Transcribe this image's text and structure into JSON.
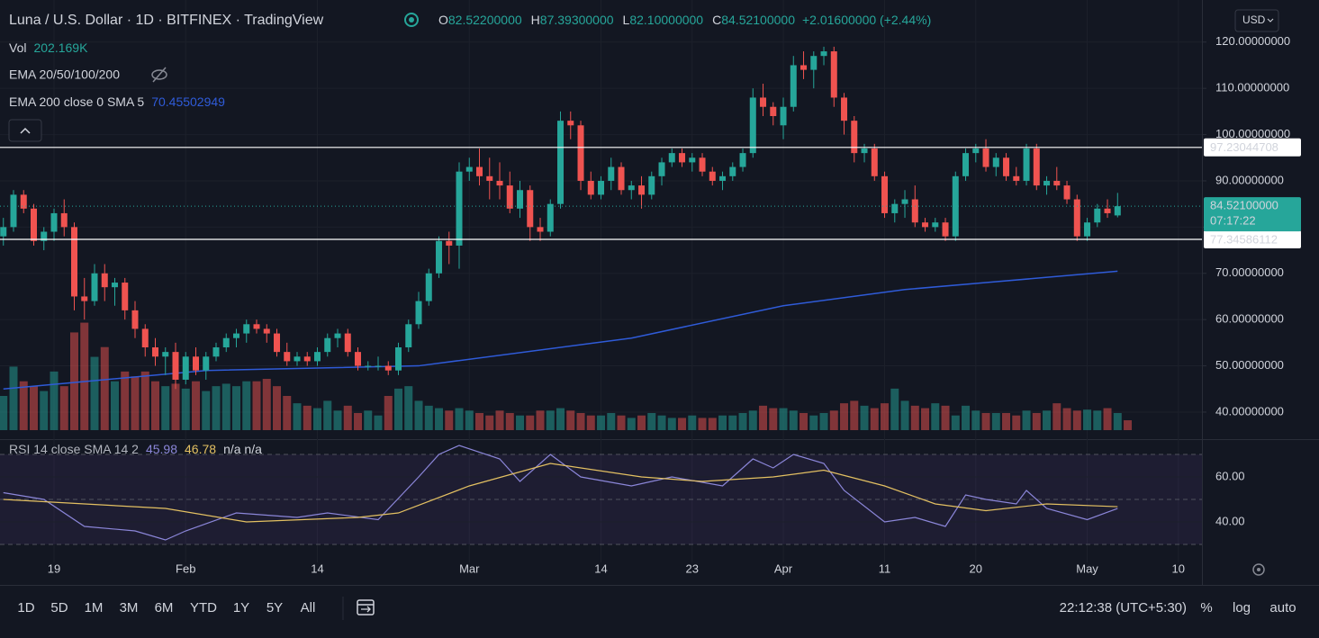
{
  "header": {
    "symbol": "Luna / U.S. Dollar",
    "interval": "1D",
    "exchange": "BITFINEX",
    "source": "TradingView",
    "currency": "USD"
  },
  "chart_data": {
    "type": "candlestick",
    "ohlc_legend": [
      {
        "key": "O",
        "label": "82.52200000"
      },
      {
        "key": "H",
        "label": "87.39300000"
      },
      {
        "key": "L",
        "label": "82.10000000"
      },
      {
        "key": "C",
        "label": "84.52100000"
      }
    ],
    "change_label": "+2.01600000 (+2.44%)",
    "xlim": [
      -0.333,
      118.33
    ],
    "xticks": [
      {
        "value": 5,
        "label": "19"
      },
      {
        "value": 18,
        "label": "Feb"
      },
      {
        "value": 31,
        "label": "14"
      },
      {
        "value": 46,
        "label": "Mar"
      },
      {
        "value": 59,
        "label": "14"
      },
      {
        "value": 68,
        "label": "23"
      },
      {
        "value": 77,
        "label": "Apr"
      },
      {
        "value": 87,
        "label": "11"
      },
      {
        "value": 96,
        "label": "20"
      },
      {
        "value": 107,
        "label": "May"
      },
      {
        "value": 116,
        "label": "10"
      }
    ],
    "ylim": [
      36.1,
      129.1
    ],
    "yticks": [
      {
        "value": 40,
        "label": "40.00000000"
      },
      {
        "value": 50,
        "label": "50.00000000"
      },
      {
        "value": 60,
        "label": "60.00000000"
      },
      {
        "value": 70,
        "label": "70.00000000"
      },
      {
        "value": 80,
        "label": "80.00000000"
      },
      {
        "value": 90,
        "label": "90.00000000"
      },
      {
        "value": 100,
        "label": "100.00000000"
      },
      {
        "value": 110,
        "label": "110.00000000"
      },
      {
        "value": 120,
        "label": "120.00000000"
      }
    ],
    "grid": true,
    "up_color": "#26a69a",
    "down_color": "#ef5350",
    "open": [
      78,
      80,
      87,
      84,
      77,
      79,
      83,
      80,
      65,
      64,
      70,
      67,
      68,
      62,
      58,
      54,
      52,
      53,
      47,
      52,
      49,
      52,
      54,
      56,
      57,
      59,
      58,
      57,
      53,
      51,
      52,
      51,
      53,
      56,
      57,
      53,
      50,
      50,
      50,
      49,
      54,
      59,
      64,
      70,
      77,
      76,
      92,
      93,
      91,
      90,
      89,
      84,
      88,
      80,
      79,
      85,
      103,
      102,
      90,
      87,
      90,
      93,
      88,
      89,
      87,
      91,
      94,
      96,
      94,
      95,
      92,
      90,
      91,
      93,
      96,
      108,
      106,
      102,
      106,
      115,
      114,
      117,
      118,
      108,
      103,
      96,
      97,
      91,
      83,
      85,
      86,
      81,
      80,
      81,
      78,
      91,
      96,
      97,
      93,
      95,
      91,
      90,
      97,
      89,
      90,
      89,
      86,
      78,
      81,
      84,
      82.522
    ],
    "high": [
      82,
      88,
      88,
      85,
      80,
      84,
      86,
      81,
      69,
      72,
      72,
      69,
      69,
      64,
      59,
      56,
      54,
      55,
      53,
      54,
      53,
      55,
      57,
      58,
      60,
      60,
      59,
      58,
      55,
      53,
      53,
      54,
      57,
      58,
      58,
      54,
      51,
      52,
      51,
      55,
      60,
      66,
      71,
      78,
      79,
      94,
      95,
      97,
      95,
      94,
      92,
      90,
      89,
      82,
      86,
      105,
      105,
      103,
      92,
      91,
      95,
      94,
      90,
      91,
      92,
      95,
      97,
      97,
      96,
      96,
      93,
      92,
      94,
      97,
      110,
      111,
      107,
      108,
      117,
      118,
      118,
      119,
      119,
      109,
      104,
      98,
      98,
      92,
      86,
      88,
      89,
      82,
      82,
      82,
      92,
      97,
      98,
      99,
      96,
      96,
      93,
      98,
      98,
      91,
      93,
      90,
      87,
      82,
      85,
      86,
      87.393
    ],
    "low": [
      76,
      79,
      83,
      76,
      75,
      77,
      78,
      62,
      60,
      63,
      64,
      63,
      60,
      56,
      52,
      50,
      48,
      45,
      46,
      48,
      47,
      51,
      53,
      54,
      55,
      57,
      55,
      52,
      50,
      50,
      50,
      50,
      52,
      54,
      52,
      49,
      49,
      49,
      48,
      48,
      53,
      58,
      63,
      69,
      72,
      71,
      90,
      89,
      86,
      86,
      83,
      82,
      77,
      77,
      78,
      84,
      99,
      88,
      86,
      86,
      88,
      87,
      86,
      84,
      86,
      89,
      93,
      93,
      92,
      91,
      89,
      88,
      90,
      92,
      95,
      104,
      102,
      99,
      105,
      112,
      110,
      115,
      106,
      100,
      94,
      94,
      90,
      82,
      81,
      82,
      80,
      79,
      79,
      77,
      77,
      90,
      94,
      92,
      91,
      90,
      89,
      89,
      88,
      87,
      88,
      85,
      77,
      77,
      80,
      82,
      82.1
    ],
    "close": [
      80,
      87,
      84,
      77,
      79,
      83,
      80,
      65,
      64,
      70,
      67,
      68,
      62,
      58,
      54,
      52,
      53,
      47,
      52,
      49,
      52,
      54,
      56,
      57,
      59,
      58,
      57,
      53,
      51,
      52,
      51,
      53,
      56,
      57,
      53,
      50,
      50,
      50,
      49,
      54,
      59,
      64,
      70,
      77,
      76,
      92,
      93,
      91,
      90,
      89,
      84,
      88,
      80,
      79,
      85,
      103,
      102,
      90,
      87,
      90,
      93,
      88,
      89,
      87,
      91,
      94,
      96,
      94,
      95,
      92,
      90,
      91,
      93,
      96,
      108,
      106,
      104,
      106,
      115,
      114,
      117,
      118,
      108,
      103,
      96,
      97,
      91,
      83,
      85,
      86,
      81,
      80,
      81,
      78,
      91,
      96,
      97,
      93,
      95,
      91,
      90,
      97,
      89,
      90,
      89,
      86,
      78,
      81,
      84,
      83,
      84.521
    ],
    "volume": {
      "name": "Vol",
      "last_value_label": "202.169K",
      "vlim": [
        0,
        7000
      ],
      "values": [
        700,
        1300,
        1000,
        900,
        800,
        1200,
        900,
        2000,
        2200,
        1500,
        1700,
        1000,
        1200,
        1100,
        1200,
        1000,
        900,
        950,
        850,
        1000,
        800,
        900,
        950,
        900,
        1000,
        1000,
        1050,
        900,
        700,
        550,
        500,
        450,
        600,
        400,
        500,
        350,
        400,
        300,
        700,
        850,
        900,
        600,
        500,
        450,
        400,
        450,
        400,
        350,
        300,
        400,
        350,
        300,
        300,
        400,
        400,
        450,
        400,
        350,
        300,
        300,
        350,
        300,
        250,
        300,
        350,
        300,
        250,
        250,
        300,
        250,
        250,
        300,
        300,
        350,
        400,
        500,
        450,
        450,
        400,
        350,
        300,
        350,
        400,
        550,
        600,
        500,
        450,
        550,
        850,
        600,
        500,
        450,
        550,
        500,
        300,
        500,
        400,
        350,
        350,
        350,
        300,
        400,
        350,
        400,
        550,
        450,
        400,
        420,
        400,
        450,
        350,
        202.169
      ]
    },
    "hidden_indicator": "EMA 20/50/100/200",
    "ema": {
      "name": "EMA 200 close 0 SMA 5",
      "color": "#2f5bd8",
      "x": [
        0,
        20,
        41,
        62,
        77,
        89,
        97,
        110
      ],
      "values": [
        45,
        49,
        50,
        56,
        63,
        66.5,
        68,
        70.45502949
      ]
    },
    "levels": [
      97.23044708,
      77.34586112
    ],
    "last_price": {
      "label": "84.52100000",
      "countdown": "07:17:22"
    },
    "rsi": {
      "title": "RSI 14 close SMA 14 2",
      "na_label": "n/a n/a",
      "ylim": [
        22,
        76.8
      ],
      "yticks": [
        {
          "value": 40,
          "label": "40.00"
        },
        {
          "value": 60,
          "label": "60.00"
        }
      ],
      "levels": [
        30,
        50,
        70
      ],
      "series": [
        {
          "color": "#8b86d9",
          "x": [
            0,
            4,
            8,
            13,
            16,
            18,
            23,
            29,
            32,
            37,
            41,
            43,
            45,
            49,
            51,
            54,
            57,
            62,
            66,
            71,
            74,
            76,
            78,
            81,
            83,
            87,
            90,
            93,
            95,
            97,
            100,
            101,
            103,
            107,
            110
          ],
          "values": [
            53,
            50,
            38,
            36,
            32,
            36,
            44,
            42,
            44,
            41,
            60,
            70,
            74,
            68,
            58,
            70,
            60,
            56,
            60,
            56,
            68,
            64,
            70,
            66,
            54,
            40,
            42,
            38,
            52,
            50,
            48,
            54,
            46,
            41,
            45.98
          ]
        },
        {
          "color": "#e3c062",
          "x": [
            0,
            16,
            24,
            35,
            39,
            46,
            54,
            63,
            69,
            76,
            81,
            87,
            92,
            97,
            103,
            110
          ],
          "values": [
            50,
            46,
            40,
            42,
            44,
            56,
            66,
            60,
            58,
            60,
            63,
            56,
            48,
            45,
            48,
            46.78
          ]
        }
      ]
    }
  },
  "toolbar": {
    "ranges": [
      "1D",
      "5D",
      "1M",
      "3M",
      "6M",
      "YTD",
      "1Y",
      "5Y",
      "All"
    ],
    "clock": "22:12:38 (UTC+5:30)",
    "options": [
      "%",
      "log",
      "auto"
    ]
  }
}
